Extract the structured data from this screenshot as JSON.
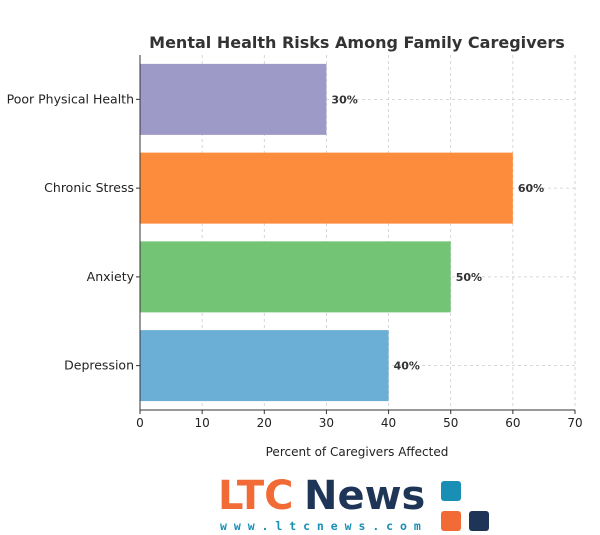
{
  "chart_data": {
    "type": "bar",
    "orientation": "horizontal",
    "title": "Mental Health Risks Among Family Caregivers",
    "xlabel": "Percent of Caregivers Affected",
    "ylabel": "",
    "xlim": [
      0,
      70
    ],
    "xticks": [
      "0",
      "10",
      "20",
      "30",
      "40",
      "50",
      "60",
      "70"
    ],
    "grid": true,
    "categories": [
      "Depression",
      "Anxiety",
      "Chronic Stress",
      "Poor Physical Health"
    ],
    "values": [
      40,
      50,
      60,
      30
    ],
    "value_labels": [
      "40%",
      "50%",
      "60%",
      "30%"
    ],
    "colors": [
      "#6baed6",
      "#74c476",
      "#fd8d3c",
      "#9e9ac8"
    ]
  },
  "logo": {
    "ltc_text": "LTC",
    "news_text": "News",
    "url_text": "w w w . l t c n e w s . c o m",
    "ltc_color": "#f26a36",
    "news_color": "#1f3558",
    "square_colors": [
      "#1a8fb5",
      "#f26a36",
      "#1f3558"
    ]
  }
}
